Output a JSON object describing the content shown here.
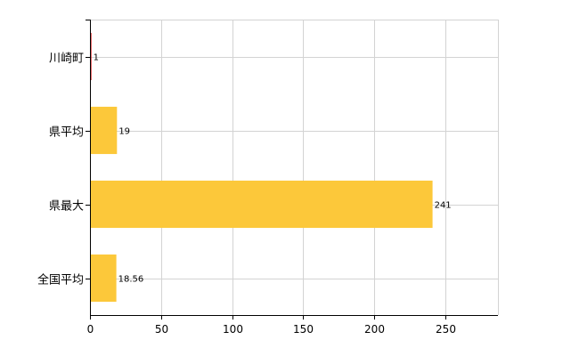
{
  "chart_data": {
    "type": "bar",
    "orientation": "horizontal",
    "categories": [
      "川崎町",
      "県平均",
      "県最大",
      "全国平均"
    ],
    "values": [
      1,
      19,
      241,
      18.56
    ],
    "value_labels": [
      "1",
      "19",
      "241",
      "18.56"
    ],
    "xlim": [
      0,
      287
    ],
    "xticks": [
      0,
      50,
      100,
      150,
      200,
      250
    ],
    "xtick_labels": [
      "0",
      "50",
      "100",
      "150",
      "200",
      "250"
    ],
    "grid": true,
    "legend": "none",
    "colors": {
      "highlight": "#d40000",
      "bar": "#fcc83a",
      "grid": "#d3d3d3",
      "axis": "#000000"
    },
    "highlight_index": 0
  }
}
